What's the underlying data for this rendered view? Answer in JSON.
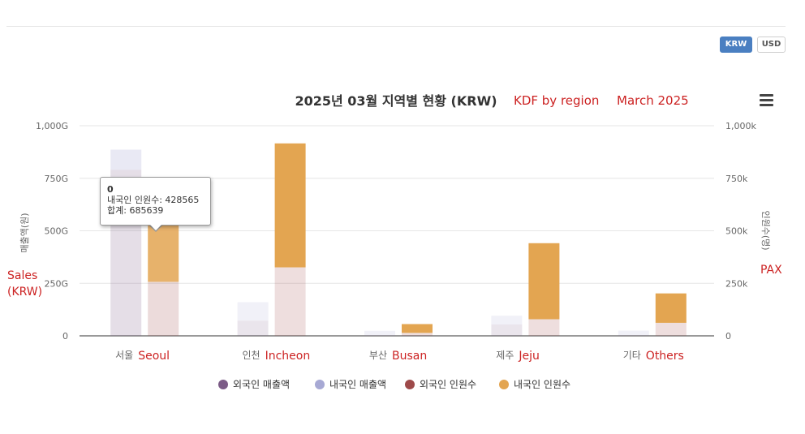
{
  "currency_buttons": {
    "krw": "KRW",
    "usd": "USD"
  },
  "annotations": {
    "title_en": "KDF by region",
    "title_date": "March 2025",
    "left_axis_en_1": "Sales",
    "left_axis_en_2": "(KRW)",
    "right_axis_en": "PAX"
  },
  "tooltip": {
    "title": "0",
    "line1": "내국인 인원수: 428565",
    "line2": "합계: 685639"
  },
  "chart_data": {
    "type": "bar",
    "title": "2025년 03월 지역별 현황 (KRW)",
    "categories": [
      "서울",
      "인천",
      "부산",
      "제주",
      "기타"
    ],
    "categories_en": [
      "Seoul",
      "Incheon",
      "Busan",
      "Jeju",
      "Others"
    ],
    "ylabel_left": "매출액(원)",
    "ylabel_right": "인원수(명)",
    "ylim_left": [
      0,
      1000
    ],
    "ylim_right": [
      0,
      1000
    ],
    "yticks_left": [
      "0",
      "250G",
      "500G",
      "750G",
      "1,000G"
    ],
    "yticks_right": [
      "0",
      "250k",
      "500k",
      "750k",
      "1,000k"
    ],
    "grid": true,
    "legend_position": "bottom",
    "series": [
      {
        "name": "외국인 매출액",
        "axis": "left",
        "stack": "sales",
        "color": "#7b5b86",
        "values": [
          790,
          72,
          2,
          54,
          3
        ]
      },
      {
        "name": "내국인 매출액",
        "axis": "left",
        "stack": "sales",
        "color": "#a7a9d4",
        "values": [
          96,
          88,
          22,
          42,
          22
        ]
      },
      {
        "name": "외국인 인원수",
        "axis": "right",
        "stack": "pax",
        "color": "#9e4a4a",
        "values": [
          257,
          326,
          14,
          79,
          62
        ]
      },
      {
        "name": "내국인 인원수",
        "axis": "right",
        "stack": "pax",
        "color": "#e3a551",
        "values": [
          428,
          590,
          42,
          362,
          140
        ]
      }
    ]
  }
}
